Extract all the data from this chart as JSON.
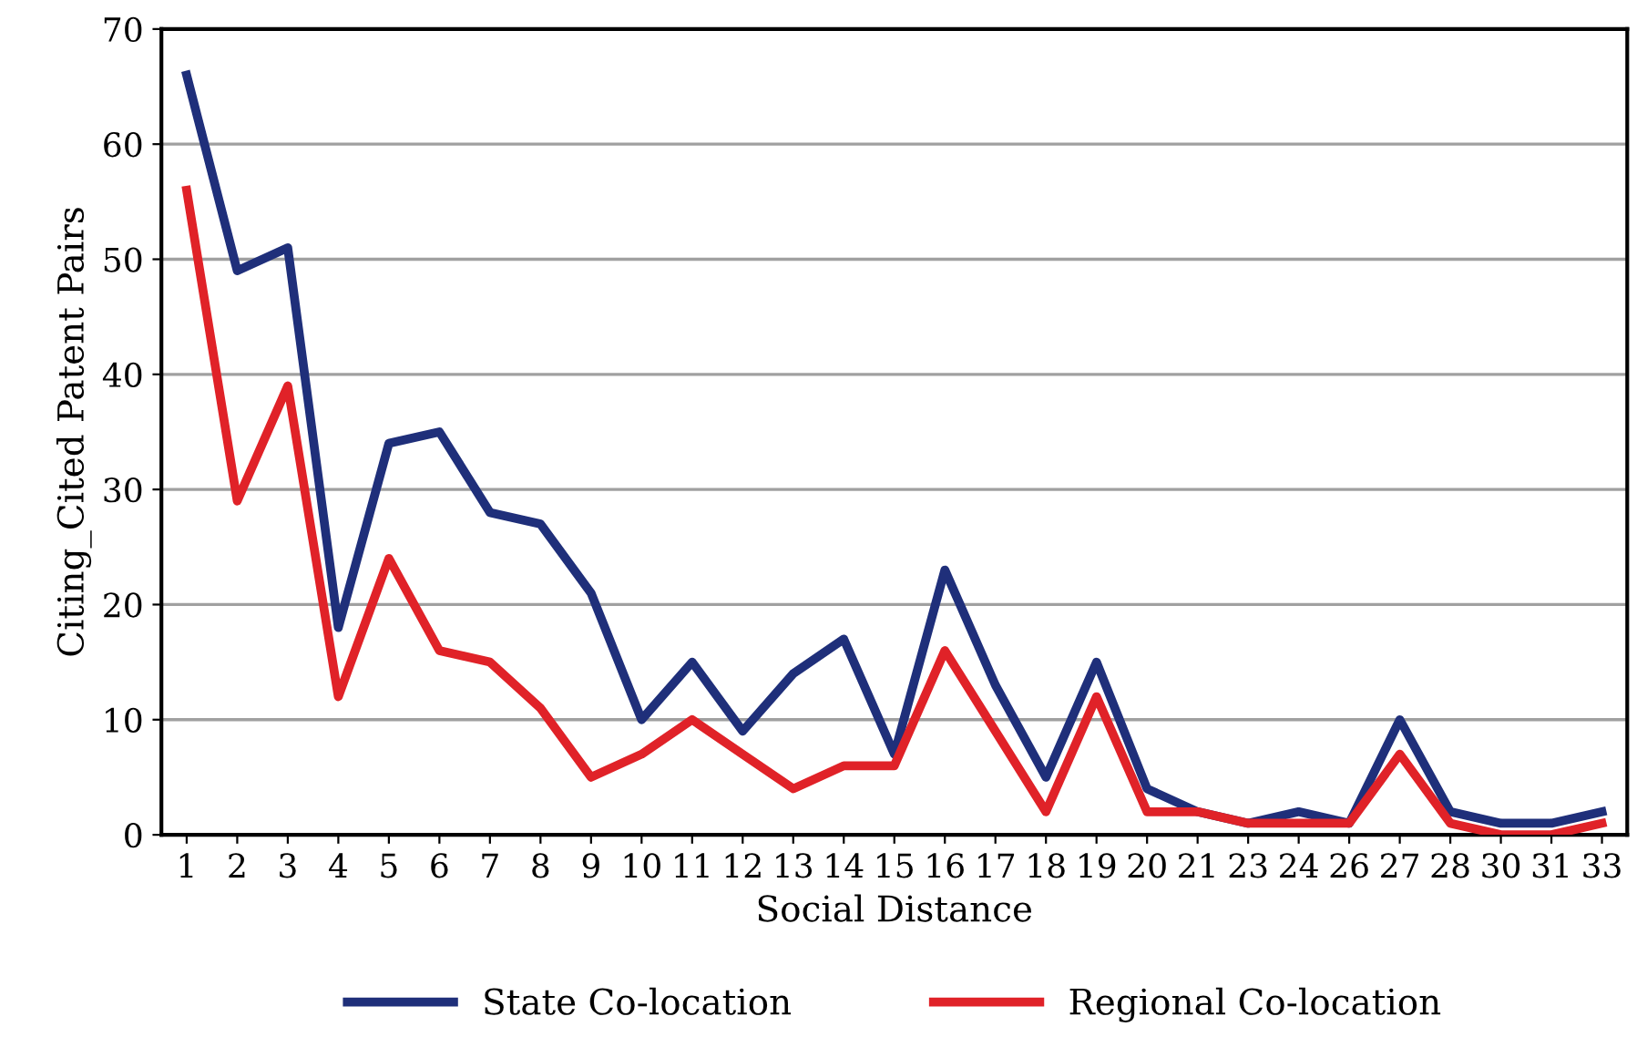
{
  "chart_data": {
    "type": "line",
    "xlabel": "Social Distance",
    "ylabel": "Citing_Cited Patent Pairs",
    "categories": [
      "1",
      "2",
      "3",
      "4",
      "5",
      "6",
      "7",
      "8",
      "9",
      "10",
      "11",
      "12",
      "13",
      "14",
      "15",
      "16",
      "17",
      "18",
      "19",
      "20",
      "21",
      "23",
      "24",
      "26",
      "27",
      "28",
      "30",
      "31",
      "33"
    ],
    "series": [
      {
        "name": "State Co-location",
        "color": "#1f2f7a",
        "values": [
          66,
          49,
          51,
          18,
          34,
          35,
          28,
          27,
          21,
          10,
          15,
          9,
          14,
          17,
          7,
          23,
          13,
          5,
          15,
          4,
          2,
          1,
          2,
          1,
          10,
          2,
          1,
          1,
          2
        ]
      },
      {
        "name": "Regional Co-location",
        "color": "#e02228",
        "values": [
          56,
          29,
          39,
          12,
          24,
          16,
          15,
          11,
          5,
          7,
          10,
          7,
          4,
          6,
          6,
          16,
          9,
          2,
          12,
          2,
          2,
          1,
          1,
          1,
          7,
          1,
          0,
          0,
          1
        ]
      }
    ],
    "ylim": [
      0,
      70
    ],
    "yticks": [
      0,
      10,
      20,
      30,
      40,
      50,
      60,
      70
    ],
    "grid": "y",
    "legend": "bottom",
    "marker": "none",
    "line_style": "solid"
  }
}
